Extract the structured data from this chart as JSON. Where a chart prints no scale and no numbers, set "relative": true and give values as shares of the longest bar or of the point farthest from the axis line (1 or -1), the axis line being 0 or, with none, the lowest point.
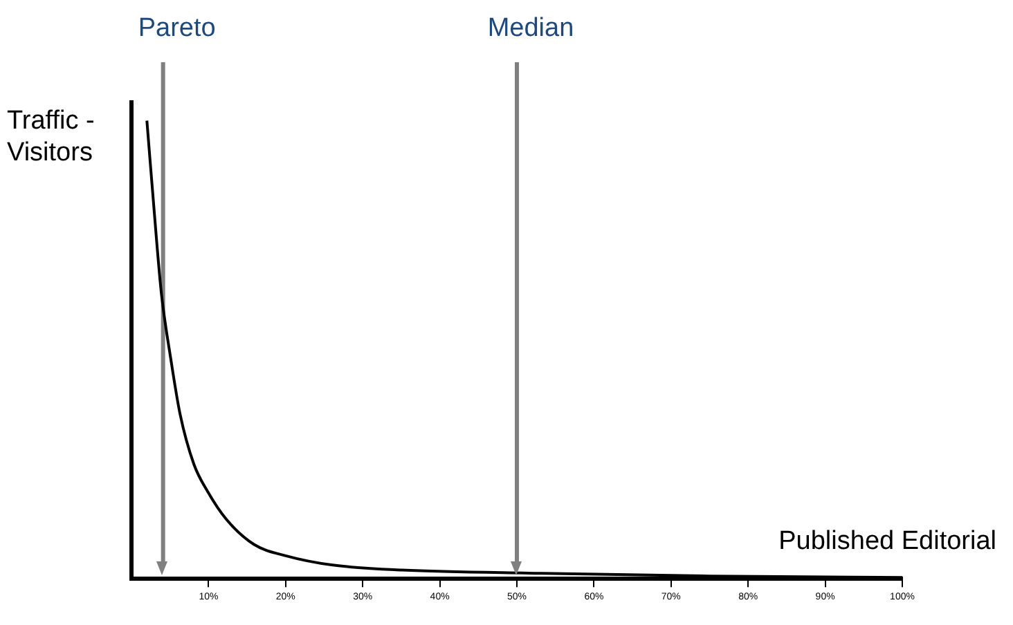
{
  "chart_data": {
    "type": "line",
    "xlabel": "Published Editorial",
    "ylabel": "Traffic - Visitors",
    "relative": true,
    "x": [
      2.0,
      3.3,
      3.9,
      5.1,
      6.3,
      8.1,
      9.9,
      12.3,
      15.9,
      20.1,
      26.1,
      35.1,
      53.2,
      75,
      100
    ],
    "series": [
      {
        "color": "#000000",
        "values": [
          1,
          0.73,
          0.62,
          0.48,
          0.36,
          0.25,
          0.19,
          0.13,
          0.075,
          0.05,
          0.03,
          0.019,
          0.012,
          0.006,
          0.003
        ]
      }
    ],
    "xlim": [
      0,
      100
    ],
    "xticks": [
      {
        "value": 10,
        "label": "10%"
      },
      {
        "value": 20,
        "label": "20%"
      },
      {
        "value": 30,
        "label": "30%"
      },
      {
        "value": 40,
        "label": "40%"
      },
      {
        "value": 50,
        "label": "50%"
      },
      {
        "value": 60,
        "label": "60%"
      },
      {
        "value": 70,
        "label": "70%"
      },
      {
        "value": 80,
        "label": "80%"
      },
      {
        "value": 90,
        "label": "90%"
      },
      {
        "value": 100,
        "label": "100%"
      }
    ],
    "ref_lines": [
      {
        "axis": "x",
        "value": 4.1,
        "label": "Pareto",
        "color": "#808080"
      },
      {
        "axis": "x",
        "value": 50,
        "label": "Median",
        "color": "#808080"
      }
    ]
  }
}
